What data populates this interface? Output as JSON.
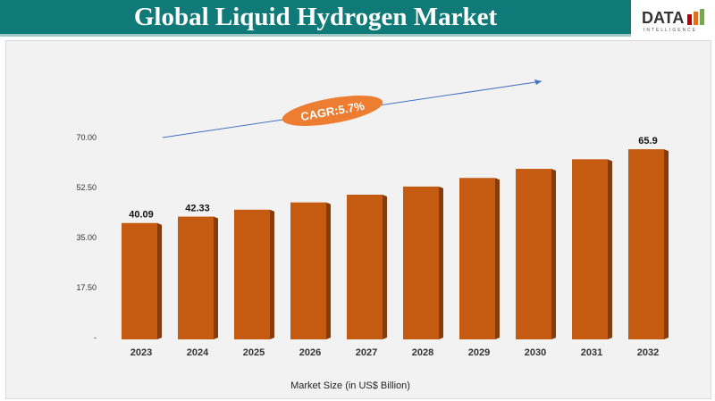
{
  "header": {
    "title": "Global Liquid Hydrogen Market",
    "logo_text": "DATA",
    "logo_subtext": "INTELLIGENCE"
  },
  "chart_data": {
    "type": "bar",
    "title": "Global Liquid Hydrogen Market",
    "xlabel": "Market Size (in US$ Billion)",
    "ylabel": "",
    "categories": [
      "2023",
      "2024",
      "2025",
      "2026",
      "2027",
      "2028",
      "2029",
      "2030",
      "2031",
      "2032"
    ],
    "values": [
      40.09,
      42.33,
      44.75,
      47.3,
      50.0,
      52.85,
      55.86,
      59.05,
      62.4,
      65.9
    ],
    "data_labels": [
      "40.09",
      "42.33",
      "",
      "",
      "",
      "",
      "",
      "",
      "",
      "65.9"
    ],
    "yticks": [
      "-",
      "17.50",
      "35.00",
      "52.50",
      "70.00"
    ],
    "ylim": [
      0,
      70
    ],
    "grid": false,
    "annotation": "CAGR:5.7%",
    "colors": {
      "bar": "#c55a11",
      "bar_side": "#843c0c",
      "title_bg": "#0f7a78",
      "cagr": "#ed7d31",
      "arrow": "#4472c4"
    }
  }
}
